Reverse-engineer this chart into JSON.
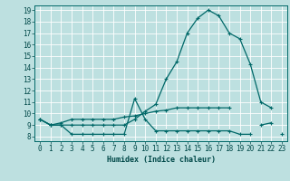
{
  "xlabel": "Humidex (Indice chaleur)",
  "x": [
    0,
    1,
    2,
    3,
    4,
    5,
    6,
    7,
    8,
    9,
    10,
    11,
    12,
    13,
    14,
    15,
    16,
    17,
    18,
    19,
    20,
    21,
    22,
    23
  ],
  "line_main": [
    9.5,
    9.0,
    9.0,
    9.0,
    9.0,
    9.0,
    9.0,
    9.0,
    9.0,
    9.5,
    10.2,
    10.8,
    13.0,
    14.5,
    17.0,
    18.3,
    19.0,
    18.5,
    17.0,
    16.5,
    14.3,
    11.0,
    10.5,
    null
  ],
  "line_low": [
    9.5,
    9.0,
    9.0,
    8.2,
    8.2,
    8.2,
    8.2,
    8.2,
    8.2,
    11.3,
    9.5,
    8.5,
    8.5,
    8.5,
    8.5,
    8.5,
    8.5,
    8.5,
    8.5,
    8.2,
    8.2,
    null,
    null,
    8.2
  ],
  "line_mid": [
    9.5,
    9.0,
    9.2,
    9.5,
    9.5,
    9.5,
    9.5,
    9.5,
    9.7,
    9.8,
    10.0,
    10.2,
    10.3,
    10.5,
    10.5,
    10.5,
    10.5,
    10.5,
    10.5,
    null,
    null,
    9.0,
    9.2,
    null
  ],
  "ylim_min": 8,
  "ylim_max": 19,
  "yticks": [
    8,
    9,
    10,
    11,
    12,
    13,
    14,
    15,
    16,
    17,
    18,
    19
  ],
  "bg_color": "#bde0e0",
  "line_color": "#006868",
  "grid_color": "#ffffff",
  "tick_color": "#004848",
  "label_fontsize": 5.5,
  "xlabel_fontsize": 6.0
}
